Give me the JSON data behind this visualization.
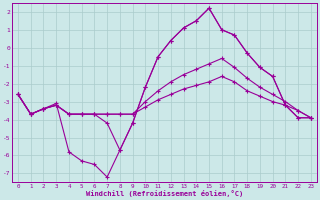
{
  "xlabel": "Windchill (Refroidissement éolien,°C)",
  "bg_color": "#cce8e8",
  "grid_color": "#aacccc",
  "line_color": "#990099",
  "text_color": "#990099",
  "spine_color": "#990099",
  "xlim": [
    -0.5,
    23.5
  ],
  "ylim": [
    -7.5,
    2.5
  ],
  "xticks": [
    0,
    1,
    2,
    3,
    4,
    5,
    6,
    7,
    8,
    9,
    10,
    11,
    12,
    13,
    14,
    15,
    16,
    17,
    18,
    19,
    20,
    21,
    22,
    23
  ],
  "yticks": [
    -7,
    -6,
    -5,
    -4,
    -3,
    -2,
    -1,
    0,
    1,
    2
  ],
  "s1_x": [
    0,
    1,
    2,
    3,
    4,
    5,
    6,
    7,
    8,
    9,
    10,
    11,
    12,
    13,
    14,
    15,
    16,
    17,
    18,
    19,
    20,
    21,
    22,
    23
  ],
  "s1_y": [
    -2.6,
    -3.7,
    -3.4,
    -3.1,
    -5.8,
    -6.3,
    -6.5,
    -7.2,
    -5.7,
    -4.2,
    -2.2,
    -0.5,
    0.4,
    1.1,
    1.5,
    2.2,
    1.0,
    0.7,
    -0.3,
    -1.1,
    -1.6,
    -3.2,
    -3.9,
    -3.9
  ],
  "s2_x": [
    0,
    1,
    2,
    3,
    4,
    5,
    6,
    7,
    8,
    9,
    10,
    11,
    12,
    13,
    14,
    15,
    16,
    17,
    18,
    19,
    20,
    21,
    22,
    23
  ],
  "s2_y": [
    -2.6,
    -3.7,
    -3.4,
    -3.2,
    -3.7,
    -3.7,
    -3.7,
    -3.7,
    -3.7,
    -3.7,
    -3.3,
    -2.9,
    -2.6,
    -2.3,
    -2.1,
    -1.9,
    -1.6,
    -1.9,
    -2.4,
    -2.7,
    -3.0,
    -3.2,
    -3.5,
    -3.9
  ],
  "s3_x": [
    0,
    1,
    2,
    3,
    4,
    5,
    6,
    7,
    8,
    9,
    10,
    11,
    12,
    13,
    14,
    15,
    16,
    17,
    18,
    19,
    20,
    21,
    22,
    23
  ],
  "s3_y": [
    -2.6,
    -3.7,
    -3.4,
    -3.2,
    -3.7,
    -3.7,
    -3.7,
    -3.7,
    -3.7,
    -3.7,
    -3.0,
    -2.4,
    -1.9,
    -1.5,
    -1.2,
    -0.9,
    -0.6,
    -1.1,
    -1.7,
    -2.2,
    -2.6,
    -3.0,
    -3.5,
    -3.9
  ],
  "s4_x": [
    0,
    1,
    2,
    3,
    4,
    5,
    6,
    7,
    8,
    9,
    10,
    11,
    12,
    13,
    14,
    15,
    16,
    17,
    18,
    19,
    20,
    21,
    22,
    23
  ],
  "s4_y": [
    -2.6,
    -3.7,
    -3.4,
    -3.2,
    -3.7,
    -3.7,
    -3.7,
    -4.2,
    -5.7,
    -4.2,
    -2.2,
    -0.5,
    0.4,
    1.1,
    1.5,
    2.2,
    1.0,
    0.7,
    -0.3,
    -1.1,
    -1.6,
    -3.2,
    -3.9,
    -3.9
  ]
}
